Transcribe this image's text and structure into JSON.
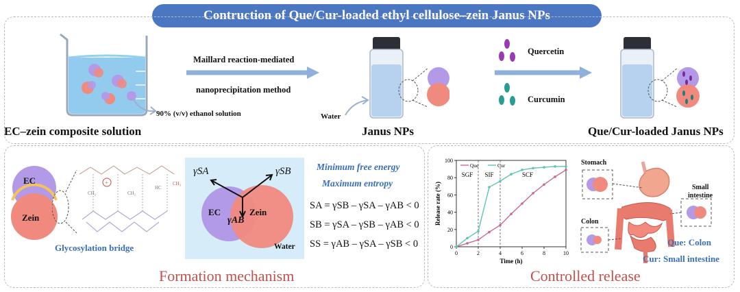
{
  "title": "Contruction of  Que/Cur-loaded ethyl cellulose–zein Janus NPs",
  "top": {
    "ec_zein_label": "EC–zein composite solution",
    "ethanol_label": "90% (v/v) ethanol solution",
    "method_line1": "Maillard reaction-mediated",
    "method_line2": "nanoprecipitation method",
    "water_label": "Water",
    "janus_label": "Janus NPs",
    "quercetin_label": "Quercetin",
    "curcumin_label": "Curcumin",
    "loaded_label": "Que/Cur-loaded Janus NPs"
  },
  "formation": {
    "ec_label": "EC",
    "zein_label": "Zein",
    "bridge_label": "Glycosylation bridge",
    "gamma_sa": "γSA",
    "gamma_sb": "γSB",
    "gamma_ab": "γAB",
    "ec_label2": "EC",
    "zein_label2": "Zein",
    "water_label": "Water",
    "min_free_energy": "Minimum free energy",
    "max_entropy": "Maximum entropy",
    "eq_sa": "SA = γSB – γSA – γAB < 0",
    "eq_sb": "SB = γSA – γSB – γAB < 0",
    "eq_ss": "SS = γAB – γSA – γSB < 0",
    "section_title": "Formation mechanism"
  },
  "release": {
    "stomach": "Stomach",
    "small_intestine_line1": "Small",
    "small_intestine_line2": "intestine",
    "colon": "Colon",
    "que_colon": "Que: Colon",
    "cur_small_intestine": "Cur: Small intestine",
    "section_title": "Controlled release"
  },
  "colors": {
    "title_bar": "#4a76c2",
    "ec": "#b39ae8",
    "zein": "#f08a7e",
    "que_line": "#c96a8c",
    "cur_line": "#5fc3b6",
    "section_title": "#c0504d"
  },
  "chart_data": {
    "type": "line",
    "title": "",
    "xlabel": "Time (h)",
    "ylabel": "Release rate (%)",
    "xlim": [
      0,
      10
    ],
    "ylim": [
      0,
      100
    ],
    "xticks": [
      0,
      2,
      4,
      6,
      8,
      10
    ],
    "yticks": [
      0,
      20,
      40,
      60,
      80,
      100
    ],
    "phase_labels": [
      {
        "label": "SGF",
        "x": 1
      },
      {
        "label": "SIF",
        "x": 3
      },
      {
        "label": "SCF",
        "x": 6.5
      }
    ],
    "phase_boundaries": [
      2,
      4
    ],
    "legend_position": "top-left",
    "series": [
      {
        "name": "Que",
        "color": "#c96a8c",
        "x": [
          0,
          1,
          2,
          3,
          4,
          5,
          6,
          7,
          8,
          9,
          10
        ],
        "y": [
          0,
          4,
          8,
          17,
          25,
          38,
          50,
          62,
          72,
          81,
          89
        ]
      },
      {
        "name": "Cur",
        "color": "#5fc3b6",
        "x": [
          0,
          1,
          2,
          3,
          4,
          5,
          6,
          7,
          8,
          9,
          10
        ],
        "y": [
          0,
          10,
          18,
          69,
          76,
          84,
          89,
          91,
          92,
          93,
          93
        ]
      }
    ]
  }
}
